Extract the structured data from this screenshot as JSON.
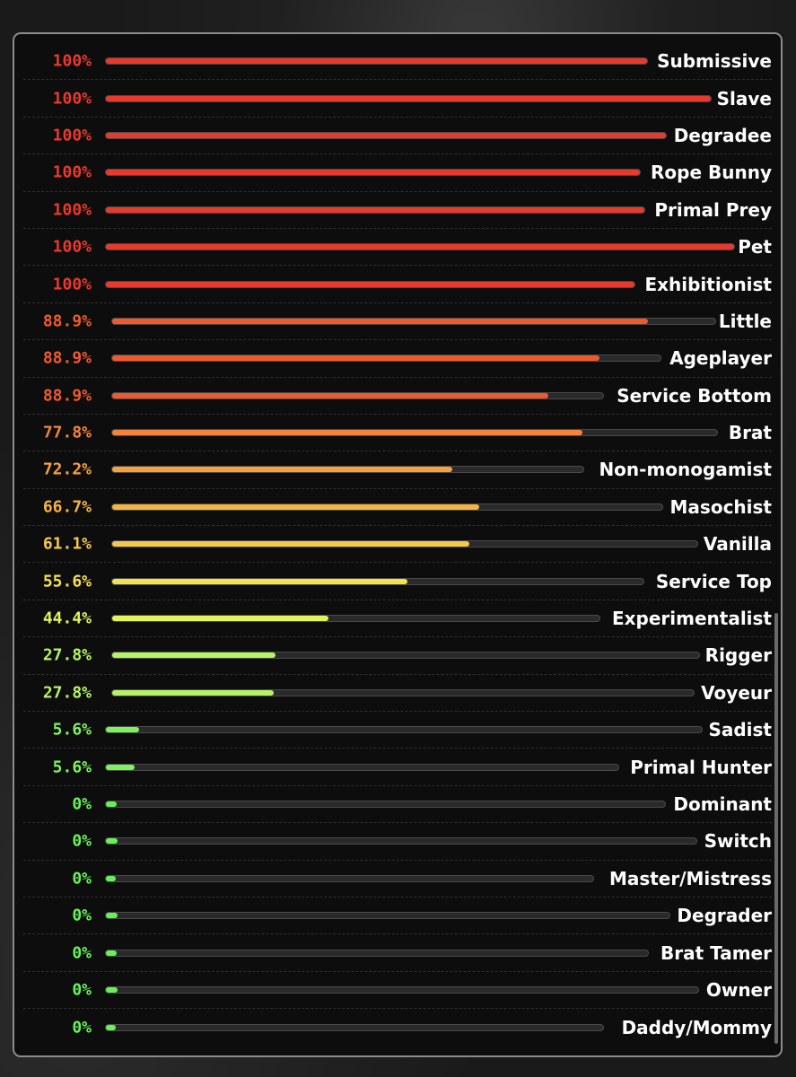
{
  "results": [
    {
      "label": "Submissive",
      "percent": "100%",
      "value": 100,
      "color": "#e8392d",
      "track_end": 706
    },
    {
      "label": "Slave",
      "percent": "100%",
      "value": 100,
      "color": "#e8392d",
      "track_end": 777
    },
    {
      "label": "Degradee",
      "percent": "100%",
      "value": 100,
      "color": "#e8392d",
      "track_end": 727
    },
    {
      "label": "Rope Bunny",
      "percent": "100%",
      "value": 100,
      "color": "#e8392d",
      "track_end": 698
    },
    {
      "label": "Primal Prey",
      "percent": "100%",
      "value": 100,
      "color": "#e8392d",
      "track_end": 703
    },
    {
      "label": "Pet",
      "percent": "100%",
      "value": 100,
      "color": "#e8392d",
      "track_end": 803
    },
    {
      "label": "Exhibitionist",
      "percent": "100%",
      "value": 100,
      "color": "#e8392d",
      "track_end": 692
    },
    {
      "label": "Little",
      "percent": "88.9%",
      "value": 88.9,
      "color": "#ee5a2e",
      "track_end": 782
    },
    {
      "label": "Ageplayer",
      "percent": "88.9%",
      "value": 88.9,
      "color": "#ee5a2e",
      "track_end": 721
    },
    {
      "label": "Service Bottom",
      "percent": "88.9%",
      "value": 88.9,
      "color": "#ee5a2e",
      "track_end": 657
    },
    {
      "label": "Brat",
      "percent": "77.8%",
      "value": 77.8,
      "color": "#f2843b",
      "track_end": 784
    },
    {
      "label": "Non-monogamist",
      "percent": "72.2%",
      "value": 72.2,
      "color": "#f3a23f",
      "track_end": 635
    },
    {
      "label": "Masochist",
      "percent": "66.7%",
      "value": 66.7,
      "color": "#f4b443",
      "track_end": 723
    },
    {
      "label": "Vanilla",
      "percent": "61.1%",
      "value": 61.1,
      "color": "#f5c84a",
      "track_end": 762
    },
    {
      "label": "Service Top",
      "percent": "55.6%",
      "value": 55.6,
      "color": "#f2e04e",
      "track_end": 702
    },
    {
      "label": "Experimentalist",
      "percent": "44.4%",
      "value": 44.4,
      "color": "#e2f45a",
      "track_end": 653
    },
    {
      "label": "Rigger",
      "percent": "27.8%",
      "value": 27.8,
      "color": "#b5f266",
      "track_end": 764
    },
    {
      "label": "Voyeur",
      "percent": "27.8%",
      "value": 27.8,
      "color": "#b5f266",
      "track_end": 758
    },
    {
      "label": "Sadist",
      "percent": "5.6%",
      "value": 5.6,
      "color": "#7ef25c",
      "track_end": 767
    },
    {
      "label": "Primal Hunter",
      "percent": "5.6%",
      "value": 5.6,
      "color": "#7ef25c",
      "track_end": 674
    },
    {
      "label": "Dominant",
      "percent": "0%",
      "value": 0,
      "color": "#66f257",
      "track_end": 726
    },
    {
      "label": "Switch",
      "percent": "0%",
      "value": 0,
      "color": "#66f257",
      "track_end": 761
    },
    {
      "label": "Master/Mistress",
      "percent": "0%",
      "value": 0,
      "color": "#66f257",
      "track_end": 646
    },
    {
      "label": "Degrader",
      "percent": "0%",
      "value": 0,
      "color": "#66f257",
      "track_end": 731
    },
    {
      "label": "Brat Tamer",
      "percent": "0%",
      "value": 0,
      "color": "#66f257",
      "track_end": 707
    },
    {
      "label": "Owner",
      "percent": "0%",
      "value": 0,
      "color": "#66f257",
      "track_end": 763
    },
    {
      "label": "Daddy/Mommy",
      "percent": "0%",
      "value": 0,
      "color": "#66f257",
      "track_end": 657
    }
  ]
}
